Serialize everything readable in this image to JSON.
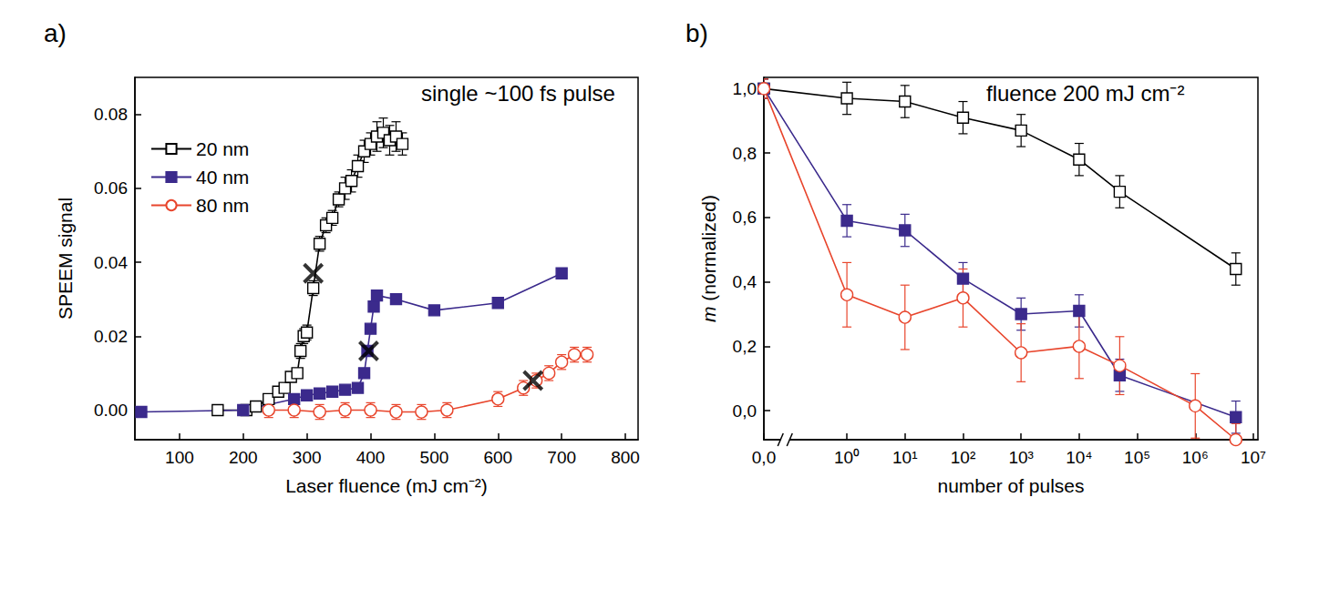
{
  "chart_data": [
    {
      "type": "line",
      "label": "a)",
      "annotation": "single ~100 fs pulse",
      "x_label": "Laser fluence (mJ cm⁻²)",
      "y_label": "SPEEM signal",
      "xlim": [
        30,
        820
      ],
      "xticks": [
        100,
        200,
        300,
        400,
        500,
        600,
        700,
        800
      ],
      "ylim": [
        -0.008,
        0.09
      ],
      "yticks": [
        {
          "value": 0,
          "label": "0.00"
        },
        {
          "value": 0.02,
          "label": "0.02"
        },
        {
          "value": 0.04,
          "label": "0.04"
        },
        {
          "value": 0.06,
          "label": "0.06"
        },
        {
          "value": 0.08,
          "label": "0.08"
        }
      ],
      "grid": false,
      "legend": "upper left",
      "series": [
        {
          "name": "20 nm",
          "color": "#000000",
          "marker": "square-open",
          "x": [
            160,
            205,
            220,
            240,
            255,
            265,
            275,
            285,
            290,
            295,
            300,
            310,
            320,
            330,
            340,
            350,
            360,
            370,
            380,
            390,
            400,
            410,
            420,
            430,
            440,
            450
          ],
          "values": [
            0,
            0,
            0.001,
            0.003,
            0.005,
            0.006,
            0.009,
            0.01,
            0.016,
            0.02,
            0.021,
            0.033,
            0.045,
            0.05,
            0.052,
            0.057,
            0.06,
            0.062,
            0.066,
            0.07,
            0.072,
            0.074,
            0.075,
            0.073,
            0.074,
            0.072
          ],
          "errors": [
            0.001,
            0.001,
            0.001,
            0.001,
            0.001,
            0.001,
            0.001,
            0.001,
            0.002,
            0.002,
            0.002,
            0.002,
            0.002,
            0.002,
            0.002,
            0.002,
            0.003,
            0.003,
            0.003,
            0.003,
            0.003,
            0.004,
            0.004,
            0.004,
            0.004,
            0.003
          ]
        },
        {
          "name": "40 nm",
          "color": "#3b2a8c",
          "marker": "square",
          "x": [
            40,
            200,
            280,
            300,
            320,
            340,
            360,
            380,
            390,
            395,
            400,
            405,
            410,
            440,
            500,
            600,
            700
          ],
          "values": [
            -0.0005,
            0,
            0.003,
            0.004,
            0.0045,
            0.005,
            0.0055,
            0.006,
            0.01,
            0.016,
            0.022,
            0.028,
            0.031,
            0.03,
            0.027,
            0.029,
            0.037
          ]
        },
        {
          "name": "80 nm",
          "color": "#e8452c",
          "marker": "circle-open",
          "x": [
            240,
            280,
            320,
            360,
            400,
            440,
            480,
            520,
            600,
            640,
            660,
            680,
            700,
            720,
            740
          ],
          "values": [
            0,
            0,
            -0.0005,
            0,
            0,
            -0.0005,
            -0.0005,
            0,
            0.003,
            0.006,
            0.008,
            0.01,
            0.013,
            0.015,
            0.015
          ],
          "errors": [
            0.002,
            0.002,
            0.002,
            0.002,
            0.002,
            0.002,
            0.002,
            0.002,
            0.002,
            0.002,
            0.002,
            0.002,
            0.002,
            0.002,
            0.002
          ]
        }
      ],
      "markers": {
        "x": [
          310,
          397,
          655
        ],
        "y": [
          0.037,
          0.016,
          0.008
        ],
        "marker": "x",
        "color": "#000000"
      }
    },
    {
      "type": "line",
      "label": "b)",
      "annotation": "fluence 200 mJ cm⁻²",
      "x_label": "number of pulses",
      "y_label": "m (normalized)",
      "log": "x",
      "xlim": [
        0,
        12000000
      ],
      "xticks": [
        {
          "value": 0,
          "label": "0,0"
        },
        {
          "value": 1,
          "label": "10⁰"
        },
        {
          "value": 10,
          "label": "10¹"
        },
        {
          "value": 100,
          "label": "10²"
        },
        {
          "value": 1000,
          "label": "10³"
        },
        {
          "value": 10000,
          "label": "10⁴"
        },
        {
          "value": 100000,
          "label": "10⁵"
        },
        {
          "value": 1000000,
          "label": "10⁶"
        },
        {
          "value": 10000000,
          "label": "10⁷"
        }
      ],
      "ylim": [
        -0.09,
        1.035
      ],
      "yticks": [
        {
          "value": 0,
          "label": "0,0"
        },
        {
          "value": 0.2,
          "label": "0,2"
        },
        {
          "value": 0.4,
          "label": "0,4"
        },
        {
          "value": 0.6,
          "label": "0,6"
        },
        {
          "value": 0.8,
          "label": "0,8"
        },
        {
          "value": 1,
          "label": "1,0"
        }
      ],
      "grid": false,
      "series": [
        {
          "color": "#000000",
          "marker": "square-open",
          "x": [
            0,
            1,
            10,
            100,
            1000,
            10000,
            50000,
            5000000
          ],
          "values": [
            1.0,
            0.97,
            0.96,
            0.91,
            0.87,
            0.78,
            0.68,
            0.44
          ],
          "errors": [
            0.03,
            0.05,
            0.05,
            0.05,
            0.05,
            0.05,
            0.05,
            0.05
          ]
        },
        {
          "color": "#3b2a8c",
          "marker": "square",
          "x": [
            0,
            1,
            10,
            100,
            1000,
            10000,
            50000,
            5000000
          ],
          "values": [
            1.0,
            0.59,
            0.56,
            0.41,
            0.3,
            0.31,
            0.11,
            -0.02
          ],
          "errors": [
            0.03,
            0.05,
            0.05,
            0.05,
            0.05,
            0.05,
            0.05,
            0.05
          ]
        },
        {
          "color": "#e8452c",
          "marker": "circle-open",
          "x": [
            0,
            1,
            10,
            100,
            1000,
            10000,
            50000,
            1000000,
            5000000
          ],
          "values": [
            1.0,
            0.36,
            0.29,
            0.35,
            0.18,
            0.2,
            0.14,
            0.015,
            -0.09
          ],
          "errors": [
            0.03,
            0.1,
            0.1,
            0.09,
            0.09,
            0.1,
            0.09,
            0.1,
            0.05
          ]
        }
      ]
    }
  ]
}
